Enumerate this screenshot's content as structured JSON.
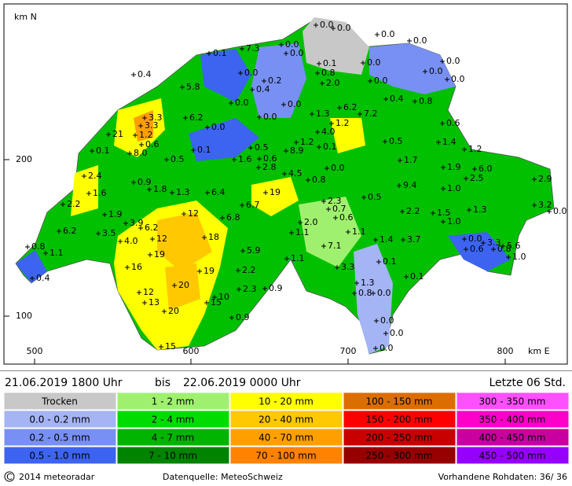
{
  "map": {
    "axis": {
      "north_label": "km N",
      "east_label": "km E",
      "y_labels": [
        "200",
        "100"
      ],
      "x_labels": [
        "500",
        "600",
        "700",
        "800"
      ]
    },
    "stations": [
      "0.0",
      "0.0",
      "0.0",
      "0.0",
      "7.3",
      "0.0",
      "0.0",
      "0.1",
      "0.1",
      "0.0",
      "0.0",
      "0.0",
      "0.0",
      "0.4",
      "0.0",
      "0.2",
      "0.4",
      "0.8",
      "2.0",
      "0.0",
      "5.8",
      "0.0",
      "0.0",
      "1.3",
      "6.2",
      "7.2",
      "0.4",
      "0.8",
      "3.3",
      "3.3",
      "6.2",
      "0.0",
      "1.2",
      "4.0",
      "0.6",
      "21",
      "1.2",
      "0.6",
      "0.0",
      "1.2",
      "0.5",
      "1.4",
      "0.1",
      "8.0",
      "0.1",
      "0.5",
      "8.9",
      "0.1",
      "1.2",
      "0.5",
      "1.6",
      "0.6",
      "2.8",
      "1.7",
      "0.0",
      "1.9",
      "6.0",
      "2.4",
      "4.5",
      "0.8",
      "2.5",
      "2.9",
      "0.9",
      "9.4",
      "1.0",
      "1.6",
      "1.8",
      "1.3",
      "6.4",
      "19",
      "0.5",
      "2.3",
      "0.7",
      "2.2",
      "6.7",
      "0.6",
      "2.2",
      "1.3",
      "3.2",
      "0.0",
      "1.9",
      "12",
      "6.8",
      "1.5",
      "3.9",
      "2.0",
      "1.0",
      "6.2",
      "3.5",
      "6.2",
      "1.1",
      "1.1",
      "4.0",
      "12",
      "18",
      "1.4",
      "3.7",
      "0.0",
      "3.3",
      "0.8",
      "1.1",
      "19",
      "5.9",
      "7.1",
      "0.6",
      "0.8",
      "5.6",
      "1.0",
      "1.1",
      "0.1",
      "16",
      "19",
      "2.2",
      "3.3",
      "0.1",
      "0.4",
      "20",
      "1.3",
      "12",
      "2.3",
      "0.9",
      "0.0",
      "0.8",
      "13",
      "15",
      "10",
      "20",
      "0.9",
      "0.0",
      "0.0",
      "0.0",
      "15"
    ]
  },
  "period": {
    "from": "21.06.2019  1800  Uhr",
    "bis": "bis",
    "to": "22.06.2019  0000  Uhr",
    "last": "Letzte  06  Std."
  },
  "legend": {
    "columns": [
      [
        {
          "label": "Trocken",
          "color": "#c8c8c8"
        },
        {
          "label": "0.0  -  0.2  mm",
          "color": "#a4b4f4"
        },
        {
          "label": "0.2  -  0.5  mm",
          "color": "#7890f4"
        },
        {
          "label": "0.5  -  1.0  mm",
          "color": "#3c64f0"
        }
      ],
      [
        {
          "label": "1  -  2  mm",
          "color": "#a0f070"
        },
        {
          "label": "2  -  4  mm",
          "color": "#00dc00"
        },
        {
          "label": "4  -  7  mm",
          "color": "#00b400"
        },
        {
          "label": "7  -  10  mm",
          "color": "#008400"
        }
      ],
      [
        {
          "label": "10  -  20  mm",
          "color": "#ffff00"
        },
        {
          "label": "20  -  40  mm",
          "color": "#ffc800"
        },
        {
          "label": "40  -  70  mm",
          "color": "#ffa000"
        },
        {
          "label": "70  -  100  mm",
          "color": "#ff8200"
        }
      ],
      [
        {
          "label": "100  -  150  mm",
          "color": "#dc6e00"
        },
        {
          "label": "150  -  200  mm",
          "color": "#ff0000"
        },
        {
          "label": "200  -  250  mm",
          "color": "#c80000"
        },
        {
          "label": "250  -  300  mm",
          "color": "#960000"
        }
      ],
      [
        {
          "label": "300  -  350  mm",
          "color": "#ff50ff"
        },
        {
          "label": "350  -  400  mm",
          "color": "#ff00c8"
        },
        {
          "label": "400  -  450  mm",
          "color": "#c800a0"
        },
        {
          "label": "450  -  500  mm",
          "color": "#9600ff"
        }
      ]
    ]
  },
  "footer": {
    "copyright": "2014  meteoradar",
    "source": "Datenquelle:  MeteoSchweiz",
    "raw": "Vorhandene  Rohdaten:   36/  36"
  }
}
